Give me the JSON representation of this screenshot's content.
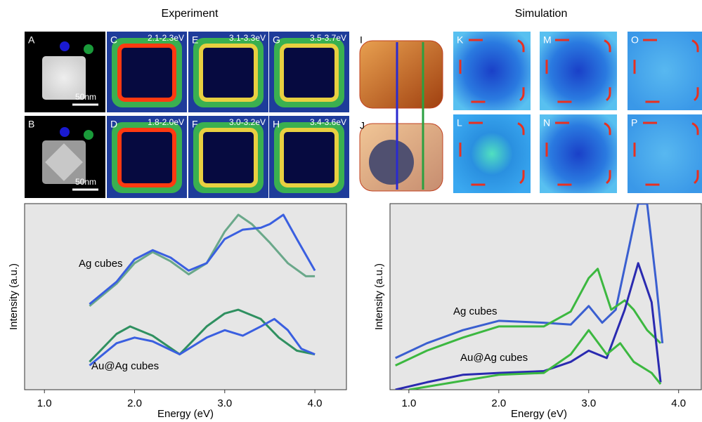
{
  "panels": {
    "experiment_title": "Experiment",
    "simulation_title": "Simulation",
    "labels": [
      "A",
      "B",
      "C",
      "D",
      "E",
      "F",
      "G",
      "H",
      "I",
      "J",
      "K",
      "L",
      "M",
      "N",
      "O",
      "P"
    ],
    "energy_ranges": [
      "2.1-2.3eV",
      "1.8-2.0eV",
      "3.1-3.3eV",
      "3.0-3.2eV",
      "3.5-3.7eV",
      "3.4-3.6eV"
    ],
    "scale_bars": [
      "50nm",
      "50nm"
    ]
  },
  "chart_data": [
    {
      "type": "line",
      "x_label": "Energy (eV)",
      "y_label": "Intensity (a.u.)",
      "annotations": [
        "Ag cubes",
        "Au@Ag cubes"
      ],
      "xlim": [
        0.78,
        4.35
      ],
      "ylim": [
        0,
        1
      ],
      "xticks": [
        {
          "value": 1,
          "label": "1.0"
        },
        {
          "value": 2,
          "label": "2.0"
        },
        {
          "value": 3,
          "label": "3.0"
        },
        {
          "value": 4,
          "label": "4.0"
        }
      ],
      "series": [
        {
          "color": "#6aa88a",
          "x": [
            1.5,
            1.8,
            2.0,
            2.2,
            2.4,
            2.6,
            2.8,
            3.0,
            3.15,
            3.3,
            3.5,
            3.7,
            3.9,
            4.0
          ],
          "values": [
            0.45,
            0.57,
            0.68,
            0.74,
            0.69,
            0.62,
            0.68,
            0.85,
            0.94,
            0.89,
            0.79,
            0.68,
            0.61,
            0.61
          ]
        },
        {
          "color": "#3a5fe0",
          "x": [
            1.5,
            1.8,
            2.0,
            2.2,
            2.4,
            2.6,
            2.8,
            3.0,
            3.2,
            3.4,
            3.5,
            3.65,
            3.8,
            4.0
          ],
          "values": [
            0.46,
            0.58,
            0.7,
            0.75,
            0.71,
            0.64,
            0.68,
            0.81,
            0.86,
            0.87,
            0.89,
            0.94,
            0.81,
            0.64
          ]
        },
        {
          "color": "#2f9060",
          "x": [
            1.5,
            1.8,
            1.95,
            2.2,
            2.5,
            2.8,
            3.0,
            3.15,
            3.4,
            3.6,
            3.8,
            4.0
          ],
          "values": [
            0.15,
            0.3,
            0.34,
            0.29,
            0.19,
            0.34,
            0.41,
            0.43,
            0.38,
            0.28,
            0.21,
            0.19
          ]
        },
        {
          "color": "#3a5fe0",
          "x": [
            1.5,
            1.8,
            2.0,
            2.2,
            2.5,
            2.8,
            3.0,
            3.2,
            3.4,
            3.55,
            3.7,
            3.85,
            4.0
          ],
          "values": [
            0.13,
            0.25,
            0.28,
            0.26,
            0.19,
            0.28,
            0.32,
            0.29,
            0.34,
            0.38,
            0.32,
            0.22,
            0.19
          ]
        }
      ]
    },
    {
      "type": "line",
      "x_label": "Energy (eV)",
      "y_label": "Intensity (a.u.)",
      "annotations": [
        "Ag cubes",
        "Au@Ag cubes"
      ],
      "xlim": [
        0.79,
        4.26
      ],
      "ylim": [
        0,
        1
      ],
      "xticks": [
        {
          "value": 1,
          "label": "1.0"
        },
        {
          "value": 2,
          "label": "2.0"
        },
        {
          "value": 3,
          "label": "3.0"
        },
        {
          "value": 4,
          "label": "4.0"
        }
      ],
      "series": [
        {
          "color": "#3a5fd0",
          "x": [
            0.85,
            1.2,
            1.6,
            2.0,
            2.5,
            2.8,
            3.0,
            3.15,
            3.3,
            3.45,
            3.55,
            3.65,
            3.75,
            3.82
          ],
          "values": [
            0.17,
            0.25,
            0.32,
            0.37,
            0.36,
            0.35,
            0.45,
            0.36,
            0.43,
            0.77,
            1.0,
            1.0,
            0.58,
            0.25
          ]
        },
        {
          "color": "#3cb840",
          "x": [
            0.85,
            1.2,
            1.6,
            2.0,
            2.5,
            2.8,
            3.0,
            3.1,
            3.25,
            3.4,
            3.5,
            3.65,
            3.8
          ],
          "values": [
            0.13,
            0.21,
            0.28,
            0.34,
            0.34,
            0.42,
            0.6,
            0.65,
            0.43,
            0.48,
            0.43,
            0.32,
            0.25
          ]
        },
        {
          "color": "#2a2ab0",
          "x": [
            0.85,
            1.2,
            1.6,
            2.0,
            2.5,
            2.8,
            3.0,
            3.2,
            3.4,
            3.55,
            3.7,
            3.8
          ],
          "values": [
            0,
            0.04,
            0.08,
            0.09,
            0.1,
            0.15,
            0.21,
            0.17,
            0.43,
            0.68,
            0.47,
            0.04
          ]
        },
        {
          "color": "#3cb840",
          "x": [
            1.0,
            1.5,
            2.0,
            2.5,
            2.8,
            3.0,
            3.2,
            3.35,
            3.5,
            3.7,
            3.8
          ],
          "values": [
            0,
            0.04,
            0.08,
            0.09,
            0.19,
            0.32,
            0.19,
            0.25,
            0.15,
            0.09,
            0.03
          ]
        }
      ]
    }
  ]
}
